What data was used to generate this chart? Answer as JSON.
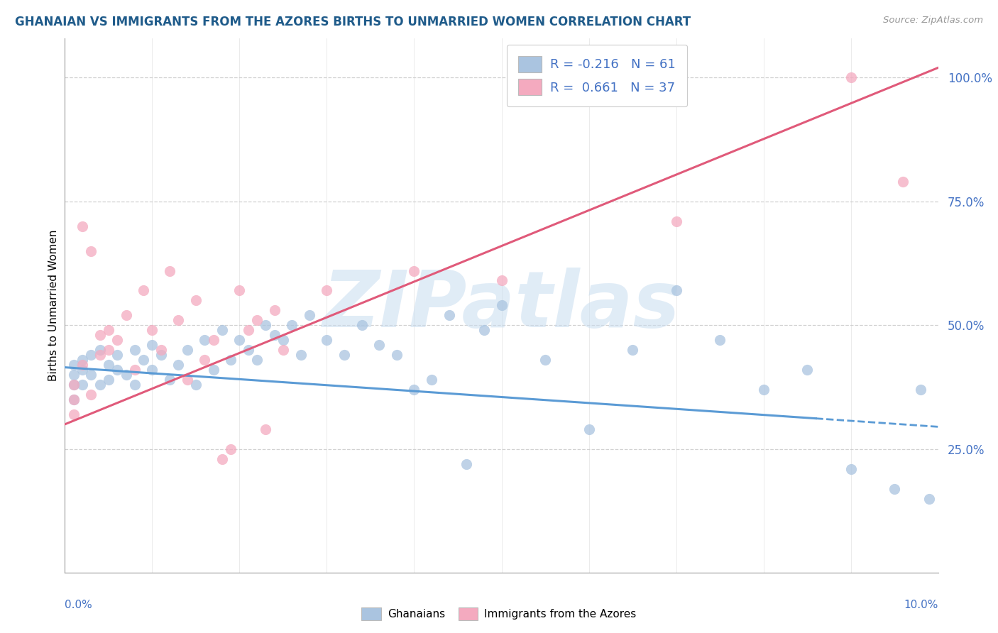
{
  "title": "GHANAIAN VS IMMIGRANTS FROM THE AZORES BIRTHS TO UNMARRIED WOMEN CORRELATION CHART",
  "source": "Source: ZipAtlas.com",
  "ylabel": "Births to Unmarried Women",
  "ytick_labels": [
    "25.0%",
    "50.0%",
    "75.0%",
    "100.0%"
  ],
  "ytick_vals": [
    0.25,
    0.5,
    0.75,
    1.0
  ],
  "legend1_label": "R = -0.216   N = 61",
  "legend2_label": "R =  0.661   N = 37",
  "ghanaian_color": "#aac4e0",
  "azores_color": "#f4aabf",
  "ghanaian_line_color": "#5b9bd5",
  "azores_line_color": "#e05a7a",
  "watermark_color": "#c8ddf0",
  "ghanaian_scatter_x": [
    0.001,
    0.001,
    0.001,
    0.001,
    0.002,
    0.002,
    0.002,
    0.003,
    0.003,
    0.004,
    0.004,
    0.005,
    0.005,
    0.006,
    0.006,
    0.007,
    0.008,
    0.008,
    0.009,
    0.01,
    0.01,
    0.011,
    0.012,
    0.013,
    0.014,
    0.015,
    0.016,
    0.017,
    0.018,
    0.019,
    0.02,
    0.021,
    0.022,
    0.023,
    0.024,
    0.025,
    0.026,
    0.027,
    0.028,
    0.03,
    0.032,
    0.034,
    0.036,
    0.038,
    0.04,
    0.042,
    0.044,
    0.046,
    0.048,
    0.05,
    0.055,
    0.06,
    0.065,
    0.07,
    0.075,
    0.08,
    0.085,
    0.09,
    0.095,
    0.098,
    0.099
  ],
  "ghanaian_scatter_y": [
    0.38,
    0.4,
    0.42,
    0.35,
    0.41,
    0.38,
    0.43,
    0.4,
    0.44,
    0.38,
    0.45,
    0.42,
    0.39,
    0.44,
    0.41,
    0.4,
    0.38,
    0.45,
    0.43,
    0.46,
    0.41,
    0.44,
    0.39,
    0.42,
    0.45,
    0.38,
    0.47,
    0.41,
    0.49,
    0.43,
    0.47,
    0.45,
    0.43,
    0.5,
    0.48,
    0.47,
    0.5,
    0.44,
    0.52,
    0.47,
    0.44,
    0.5,
    0.46,
    0.44,
    0.37,
    0.39,
    0.52,
    0.22,
    0.49,
    0.54,
    0.43,
    0.29,
    0.45,
    0.57,
    0.47,
    0.37,
    0.41,
    0.21,
    0.17,
    0.37,
    0.15
  ],
  "azores_scatter_x": [
    0.001,
    0.001,
    0.001,
    0.002,
    0.002,
    0.003,
    0.003,
    0.004,
    0.004,
    0.005,
    0.005,
    0.006,
    0.007,
    0.008,
    0.009,
    0.01,
    0.011,
    0.012,
    0.013,
    0.014,
    0.015,
    0.016,
    0.017,
    0.018,
    0.019,
    0.02,
    0.021,
    0.022,
    0.023,
    0.024,
    0.025,
    0.03,
    0.04,
    0.05,
    0.07,
    0.09,
    0.096
  ],
  "azores_scatter_y": [
    0.38,
    0.35,
    0.32,
    0.42,
    0.7,
    0.36,
    0.65,
    0.44,
    0.48,
    0.49,
    0.45,
    0.47,
    0.52,
    0.41,
    0.57,
    0.49,
    0.45,
    0.61,
    0.51,
    0.39,
    0.55,
    0.43,
    0.47,
    0.23,
    0.25,
    0.57,
    0.49,
    0.51,
    0.29,
    0.53,
    0.45,
    0.57,
    0.61,
    0.59,
    0.71,
    1.0,
    0.79
  ],
  "xmin": 0.0,
  "xmax": 0.1,
  "ymin": 0.0,
  "ymax": 1.08,
  "gh_trend_x0": 0.0,
  "gh_trend_x1": 0.1,
  "gh_trend_y0": 0.415,
  "gh_trend_y1": 0.295,
  "az_trend_x0": 0.0,
  "az_trend_x1": 0.1,
  "az_trend_y0": 0.3,
  "az_trend_y1": 1.02
}
